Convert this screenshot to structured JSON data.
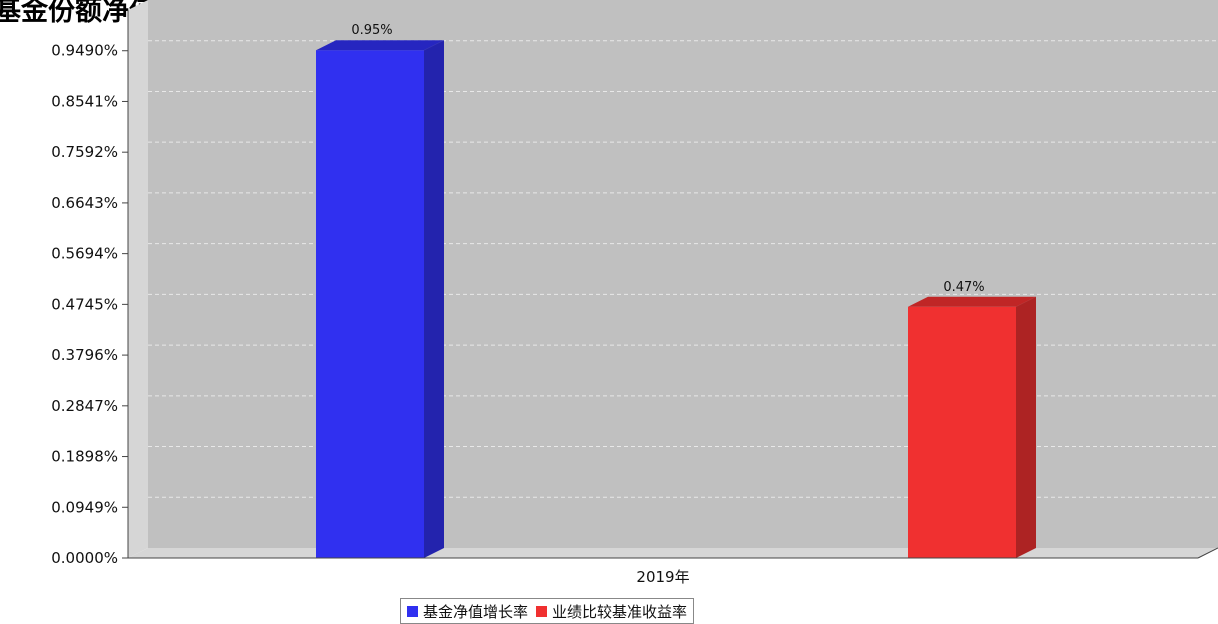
{
  "chart_data": {
    "type": "bar",
    "title": "",
    "title_fragment": "基金份额净值增长率与同期业绩比较基准收益率的对比",
    "categories": [
      "2019年"
    ],
    "series": [
      {
        "name": "基金净值增长率",
        "values": [
          0.95
        ],
        "color": "#3030f0",
        "data_label": "0.95%"
      },
      {
        "name": "业绩比较基准收益率",
        "values": [
          0.47
        ],
        "color": "#f03030",
        "data_label": "0.47%"
      }
    ],
    "ylim": [
      0,
      1.0439
    ],
    "yticks": [
      "0.0000%",
      "0.0949%",
      "0.1898%",
      "0.2847%",
      "0.3796%",
      "0.4745%",
      "0.5694%",
      "0.6643%",
      "0.7592%",
      "0.8541%",
      "0.9490%"
    ],
    "xlabel": "",
    "ylabel": "",
    "grid": true,
    "legend_position": "bottom",
    "plot_background": "#c0c0c0"
  }
}
